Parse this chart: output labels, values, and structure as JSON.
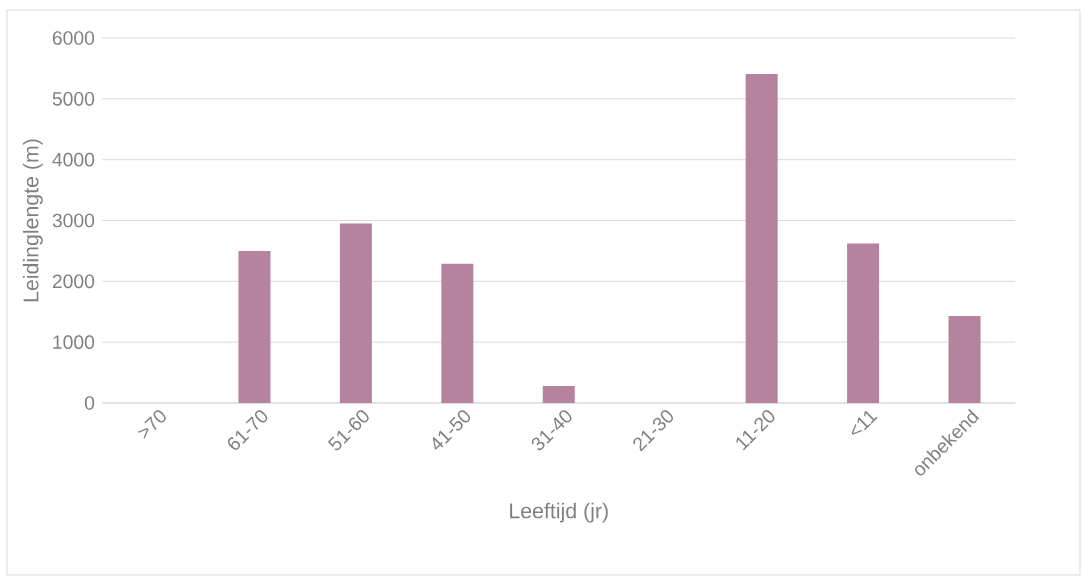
{
  "chart_data": {
    "type": "bar",
    "xlabel": "Leeftijd (jr)",
    "ylabel": "Leidinglengte (m)",
    "categories": [
      ">70",
      "61-70",
      "51-60",
      "41-50",
      "31-40",
      "21-30",
      "11-20",
      "<11",
      "onbekend"
    ],
    "values": [
      0,
      2500,
      2950,
      2290,
      280,
      0,
      5410,
      2620,
      1430
    ],
    "color": "#b5839f",
    "ylim": [
      0,
      6000
    ],
    "yticks": [
      0,
      1000,
      2000,
      3000,
      4000,
      5000,
      6000
    ],
    "grid": "y"
  }
}
